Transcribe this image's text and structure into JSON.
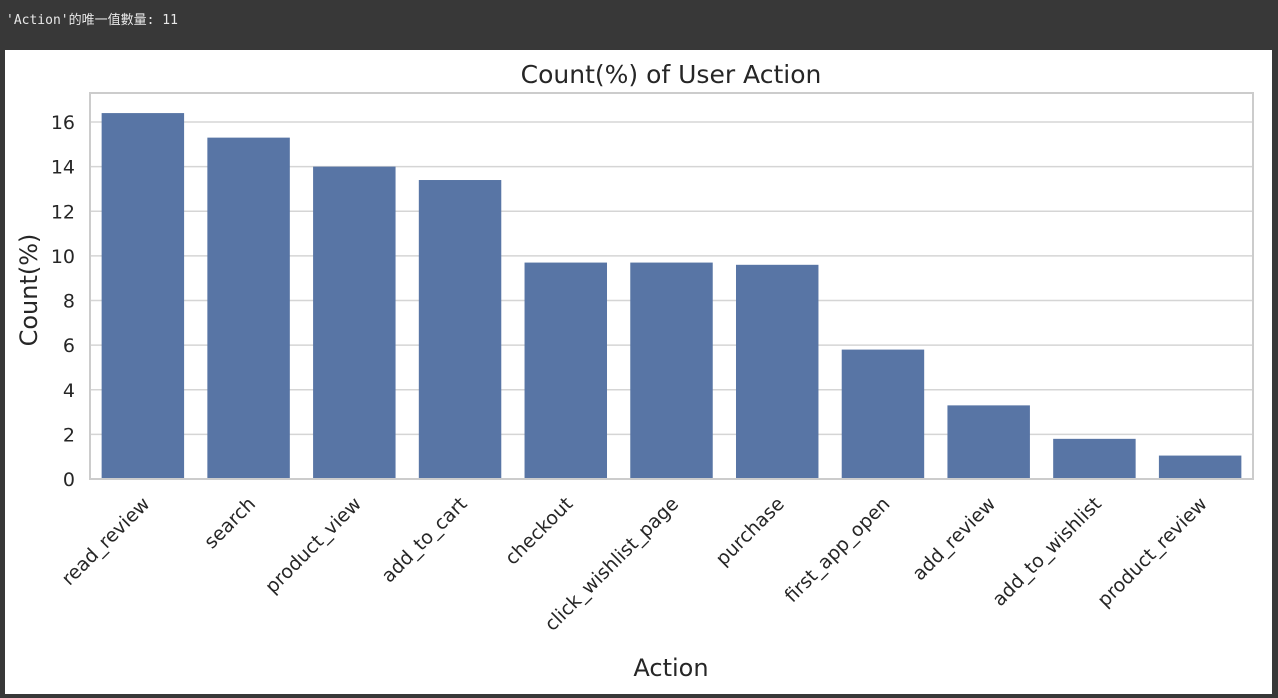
{
  "output": {
    "text": "'Action'的唯一值數量: 11"
  },
  "chart_data": {
    "type": "bar",
    "title": "Count(%) of User Action",
    "xlabel": "Action",
    "ylabel": "Count(%)",
    "categories": [
      "read_review",
      "search",
      "product_view",
      "add_to_cart",
      "checkout",
      "click_wishlist_page",
      "purchase",
      "first_app_open",
      "add_review",
      "add_to_wishlist",
      "product_review"
    ],
    "values": [
      16.4,
      15.3,
      14.0,
      13.4,
      9.7,
      9.7,
      9.6,
      5.8,
      3.3,
      1.8,
      1.05
    ],
    "ylim": [
      0,
      17.3
    ],
    "yticks": [
      0,
      2,
      4,
      6,
      8,
      10,
      12,
      14,
      16
    ],
    "grid": true,
    "bar_color": "#5875a5",
    "grid_color": "#d5d5d5",
    "frame_color": "#cccccc"
  }
}
